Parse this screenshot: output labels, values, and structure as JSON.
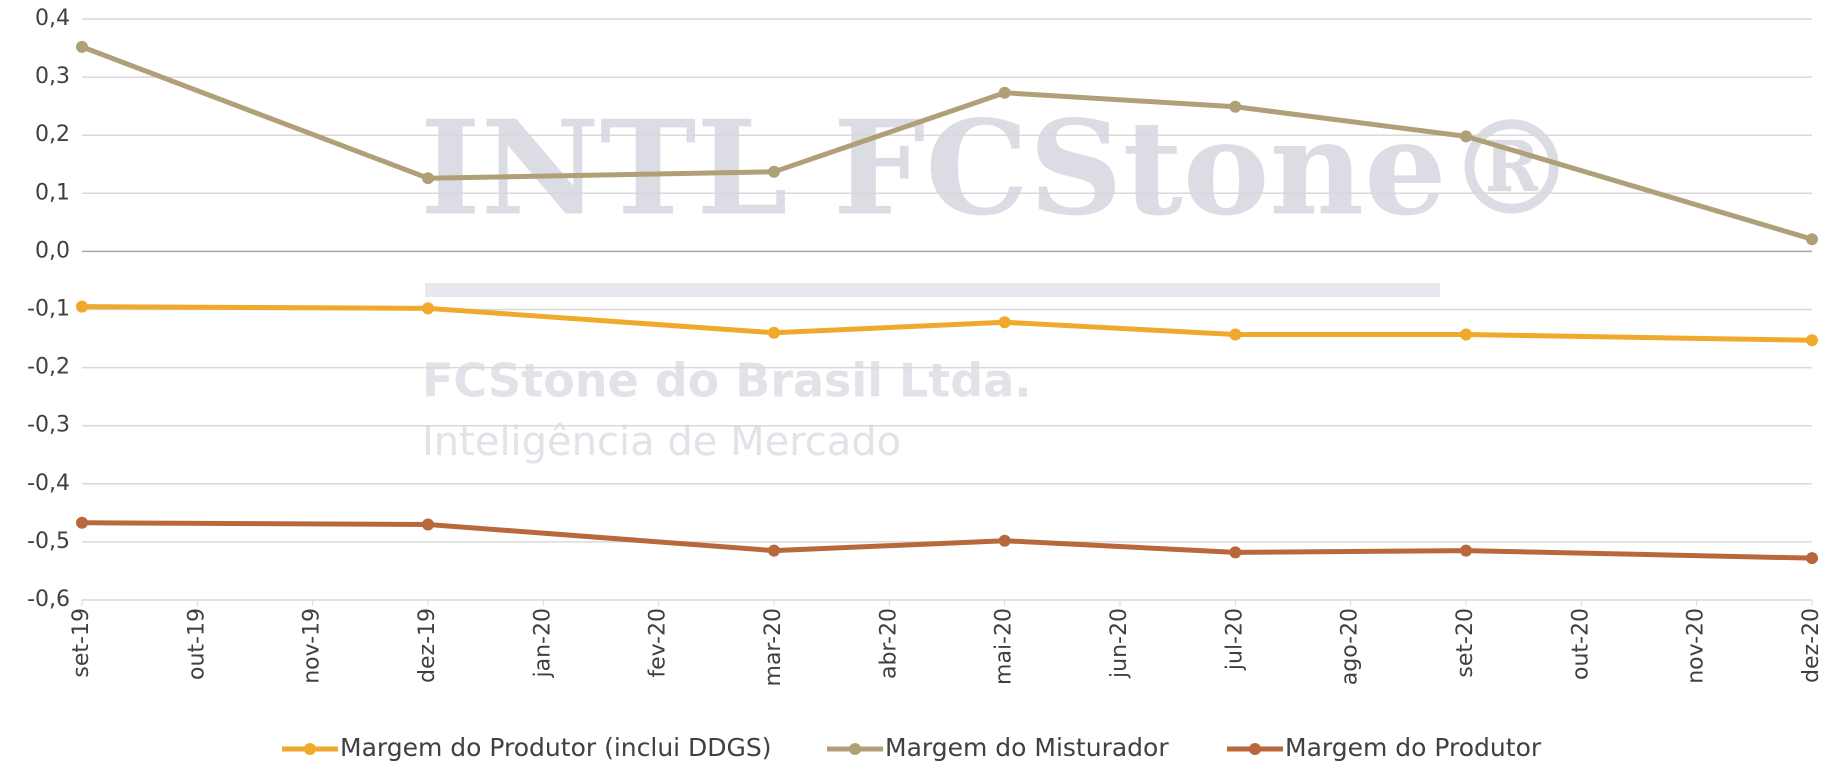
{
  "watermark": {
    "brand": "INTL FCStone®",
    "company": "FCStone do Brasil Ltda.",
    "unit": "Inteligência de Mercado"
  },
  "chart_data": {
    "type": "line",
    "x": [
      "2019-09",
      "2019-12",
      "2020-03",
      "2020-05",
      "2020-07",
      "2020-09",
      "2020-12"
    ],
    "xticks": [
      {
        "value": "2019-09",
        "label": "set-19"
      },
      {
        "value": "2019-10",
        "label": "out-19"
      },
      {
        "value": "2019-11",
        "label": "nov-19"
      },
      {
        "value": "2019-12",
        "label": "dez-19"
      },
      {
        "value": "2020-01",
        "label": "jan-20"
      },
      {
        "value": "2020-02",
        "label": "fev-20"
      },
      {
        "value": "2020-03",
        "label": "mar-20"
      },
      {
        "value": "2020-04",
        "label": "abr-20"
      },
      {
        "value": "2020-05",
        "label": "mai-20"
      },
      {
        "value": "2020-06",
        "label": "jun-20"
      },
      {
        "value": "2020-07",
        "label": "jul-20"
      },
      {
        "value": "2020-08",
        "label": "ago-20"
      },
      {
        "value": "2020-09",
        "label": "set-20"
      },
      {
        "value": "2020-10",
        "label": "out-20"
      },
      {
        "value": "2020-11",
        "label": "nov-20"
      },
      {
        "value": "2020-12",
        "label": "dez-20"
      }
    ],
    "ylim": [
      -0.6,
      0.4
    ],
    "yticks": [
      {
        "value": -0.6,
        "label": "-0,6"
      },
      {
        "value": -0.5,
        "label": "-0,5"
      },
      {
        "value": -0.4,
        "label": "-0,4"
      },
      {
        "value": -0.3,
        "label": "-0,3"
      },
      {
        "value": -0.2,
        "label": "-0,2"
      },
      {
        "value": -0.1,
        "label": "-0,1"
      },
      {
        "value": 0,
        "label": "0,0"
      },
      {
        "value": 0.1,
        "label": "0,1"
      },
      {
        "value": 0.2,
        "label": "0,2"
      },
      {
        "value": 0.3,
        "label": "0,3"
      },
      {
        "value": 0.4,
        "label": "0,4"
      }
    ],
    "grid": true,
    "legend": "bottom",
    "series": [
      {
        "name": "Margem do Produtor (inclui DDGS)",
        "color": "#f0a92a",
        "values": [
          -0.095,
          -0.098,
          -0.14,
          -0.122,
          -0.143,
          -0.143,
          -0.153
        ]
      },
      {
        "name": "Margem do Misturador",
        "color": "#b0a078",
        "values": [
          0.352,
          0.126,
          0.137,
          0.273,
          0.249,
          0.198,
          0.021
        ]
      },
      {
        "name": "Margem do Produtor",
        "color": "#b8683a",
        "values": [
          -0.467,
          -0.47,
          -0.515,
          -0.498,
          -0.518,
          -0.515,
          -0.528
        ]
      }
    ]
  }
}
